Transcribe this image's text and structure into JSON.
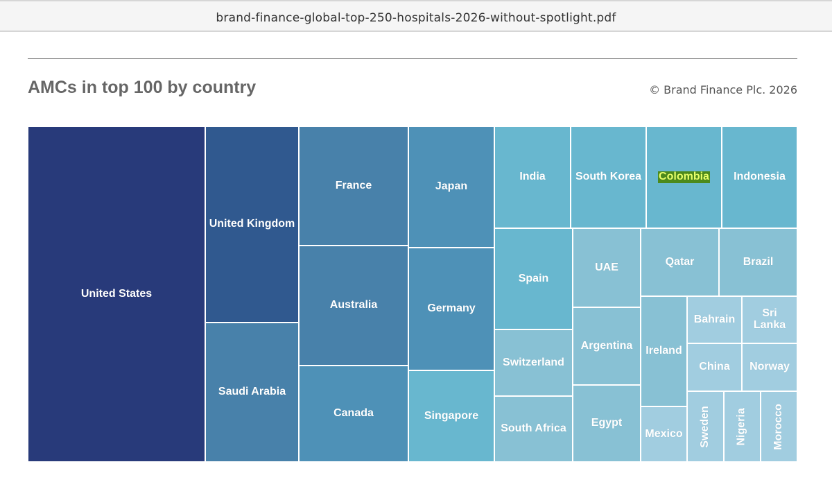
{
  "viewer": {
    "filename": "brand-finance-global-top-250-hospitals-2026-without-spotlight.pdf"
  },
  "chart_data": {
    "type": "treemap",
    "title": "AMCs in top 100 by country",
    "copyright": "© Brand Finance Plc. 2026",
    "tiles": [
      {
        "label": "United States",
        "color": "#283a7a"
      },
      {
        "label": "United Kingdom",
        "color": "#30598f"
      },
      {
        "label": "Saudi Arabia",
        "color": "#4881aa"
      },
      {
        "label": "France",
        "color": "#4881aa"
      },
      {
        "label": "Australia",
        "color": "#4881aa"
      },
      {
        "label": "Canada",
        "color": "#4e91b7"
      },
      {
        "label": "Japan",
        "color": "#4e91b7"
      },
      {
        "label": "Germany",
        "color": "#4e91b7"
      },
      {
        "label": "Singapore",
        "color": "#68b7cf"
      },
      {
        "label": "India",
        "color": "#68b7cf"
      },
      {
        "label": "South Korea",
        "color": "#68b7cf"
      },
      {
        "label": "Colombia",
        "color": "#68b7cf",
        "highlighted": true
      },
      {
        "label": "Indonesia",
        "color": "#68b7cf"
      },
      {
        "label": "Spain",
        "color": "#68b7cf"
      },
      {
        "label": "Switzerland",
        "color": "#88c1d4"
      },
      {
        "label": "South Africa",
        "color": "#88c1d4"
      },
      {
        "label": "UAE",
        "color": "#88c1d4"
      },
      {
        "label": "Argentina",
        "color": "#88c1d4"
      },
      {
        "label": "Egypt",
        "color": "#88c1d4"
      },
      {
        "label": "Qatar",
        "color": "#88c1d4"
      },
      {
        "label": "Brazil",
        "color": "#88c1d4"
      },
      {
        "label": "Ireland",
        "color": "#88c1d4"
      },
      {
        "label": "Mexico",
        "color": "#a1cde0"
      },
      {
        "label": "Bahrain",
        "color": "#a1cde0"
      },
      {
        "label": "Sri Lanka",
        "color": "#a1cde0"
      },
      {
        "label": "China",
        "color": "#a1cde0"
      },
      {
        "label": "Norway",
        "color": "#a1cde0"
      },
      {
        "label": "Sweden",
        "color": "#a1cde0",
        "vertical": true
      },
      {
        "label": "Nigeria",
        "color": "#a1cde0",
        "vertical": true
      },
      {
        "label": "Morocco",
        "color": "#a1cde0",
        "vertical": true
      }
    ]
  }
}
